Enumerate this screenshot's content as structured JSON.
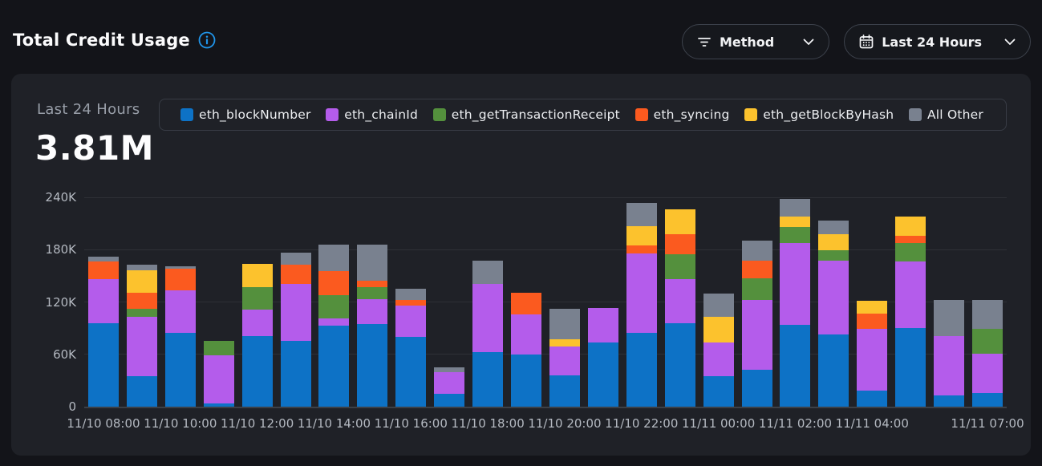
{
  "page": {
    "title": "Total Credit Usage"
  },
  "toolbar": {
    "method_label": "Method",
    "time_range_label": "Last 24 Hours"
  },
  "panel": {
    "period_label": "Last 24 Hours",
    "total_value": "3.81M"
  },
  "colors": {
    "page_bg": "#131419",
    "card_bg": "#1f2127",
    "accent_blue": "#2095ea",
    "axis_text": "#b4b9c1"
  },
  "chart_data": {
    "type": "bar",
    "stacked": true,
    "title": "Total Credit Usage",
    "xlabel": "",
    "ylabel": "",
    "ylim": [
      0,
      240000
    ],
    "grid": true,
    "legend_position": "top",
    "yticks": [
      {
        "value": 0,
        "label": "0"
      },
      {
        "value": 60000,
        "label": "60K"
      },
      {
        "value": 120000,
        "label": "120K"
      },
      {
        "value": 180000,
        "label": "180K"
      },
      {
        "value": 240000,
        "label": "240K"
      }
    ],
    "x": [
      "11/10 08:00",
      "11/10 09:00",
      "11/10 10:00",
      "11/10 11:00",
      "11/10 12:00",
      "11/10 13:00",
      "11/10 14:00",
      "11/10 15:00",
      "11/10 16:00",
      "11/10 17:00",
      "11/10 18:00",
      "11/10 19:00",
      "11/10 20:00",
      "11/10 21:00",
      "11/10 22:00",
      "11/10 23:00",
      "11/11 00:00",
      "11/11 01:00",
      "11/11 02:00",
      "11/11 03:00",
      "11/11 04:00",
      "11/11 05:00",
      "11/11 06:00",
      "11/11 07:00"
    ],
    "x_ticks": [
      {
        "index": 0,
        "label": "11/10 08:00"
      },
      {
        "index": 2,
        "label": "11/10 10:00"
      },
      {
        "index": 4,
        "label": "11/10 12:00"
      },
      {
        "index": 6,
        "label": "11/10 14:00"
      },
      {
        "index": 8,
        "label": "11/10 16:00"
      },
      {
        "index": 10,
        "label": "11/10 18:00"
      },
      {
        "index": 12,
        "label": "11/10 20:00"
      },
      {
        "index": 14,
        "label": "11/10 22:00"
      },
      {
        "index": 16,
        "label": "11/11 00:00"
      },
      {
        "index": 18,
        "label": "11/11 02:00"
      },
      {
        "index": 20,
        "label": "11/11 04:00"
      },
      {
        "index": 23,
        "label": "11/11 07:00"
      }
    ],
    "series": [
      {
        "name": "eth_blockNumber",
        "color": "#0d72c6",
        "values": [
          96000,
          35000,
          85000,
          4000,
          81000,
          75000,
          93000,
          95000,
          80000,
          15000,
          63000,
          60000,
          36000,
          74000,
          85000,
          96000,
          35000,
          42000,
          94000,
          83000,
          18000,
          90000,
          13000,
          16000
        ]
      },
      {
        "name": "eth_chainId",
        "color": "#b45ceb",
        "values": [
          50000,
          68000,
          48000,
          55000,
          30000,
          66000,
          8000,
          28000,
          36000,
          25000,
          78000,
          46000,
          33000,
          39000,
          91000,
          50000,
          39000,
          80000,
          94000,
          84000,
          71000,
          76000,
          68000,
          45000
        ]
      },
      {
        "name": "eth_getTransactionReceipt",
        "color": "#54903d",
        "values": [
          0,
          9000,
          0,
          16000,
          26000,
          0,
          27000,
          14000,
          0,
          0,
          0,
          0,
          0,
          0,
          0,
          29000,
          0,
          25000,
          18000,
          12000,
          0,
          22000,
          0,
          28000
        ]
      },
      {
        "name": "eth_syncing",
        "color": "#fb5a1f",
        "values": [
          20000,
          19000,
          25000,
          0,
          0,
          22000,
          27000,
          7000,
          6000,
          0,
          0,
          25000,
          0,
          0,
          9000,
          23000,
          0,
          20000,
          0,
          0,
          18000,
          8000,
          0,
          0
        ]
      },
      {
        "name": "eth_getBlockByHash",
        "color": "#fcc22d",
        "values": [
          0,
          25000,
          0,
          0,
          27000,
          0,
          0,
          0,
          0,
          0,
          0,
          0,
          8000,
          0,
          22000,
          28000,
          29000,
          0,
          12000,
          19000,
          14000,
          22000,
          0,
          0
        ]
      },
      {
        "name": "All Other",
        "color": "#79818f",
        "values": [
          6000,
          7000,
          3000,
          0,
          0,
          14000,
          31000,
          42000,
          13000,
          5000,
          26000,
          0,
          35000,
          0,
          27000,
          0,
          27000,
          23000,
          20000,
          15000,
          0,
          0,
          41000,
          33000
        ]
      }
    ]
  }
}
